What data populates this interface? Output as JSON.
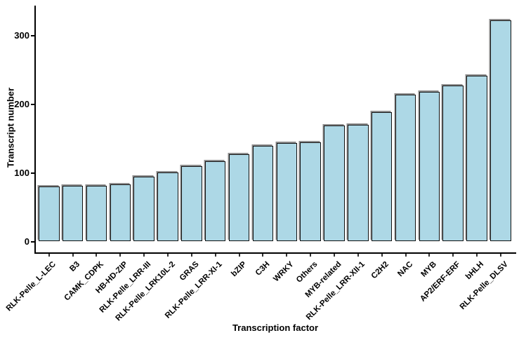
{
  "chart_data": {
    "type": "bar",
    "title": "",
    "xlabel": "Transcription factor",
    "ylabel": "Transcript number",
    "categories": [
      "RLK-Pelle_L-LEC",
      "B3",
      "CAMK_CDPK",
      "HB-HD-ZIP",
      "RLK-Pelle_LRR-III",
      "RLK-Pelle_LRK10L-2",
      "GRAS",
      "RLK-Pelle_LRR-XI-1",
      "bZIP",
      "C3H",
      "WRKY",
      "Others",
      "MYB-related",
      "RLK-Pelle_LRR-XII-1",
      "C2H2",
      "NAC",
      "MYB",
      "AP2/ERF-ERF",
      "bHLH",
      "RLK-Pelle_DLSV"
    ],
    "values": [
      80,
      81,
      81,
      83,
      94,
      101,
      110,
      117,
      127,
      139,
      143,
      144,
      169,
      170,
      188,
      214,
      218,
      227,
      241,
      322
    ],
    "yticks": [
      0,
      100,
      200,
      300
    ],
    "ylim": [
      0,
      340
    ],
    "grid": false,
    "legend": "none",
    "bar_fill": "#ADD8E6",
    "bar_border": "#111111",
    "bar_shadow": "#8f8f8f",
    "axis_color": "#000000",
    "background": "#ffffff"
  }
}
